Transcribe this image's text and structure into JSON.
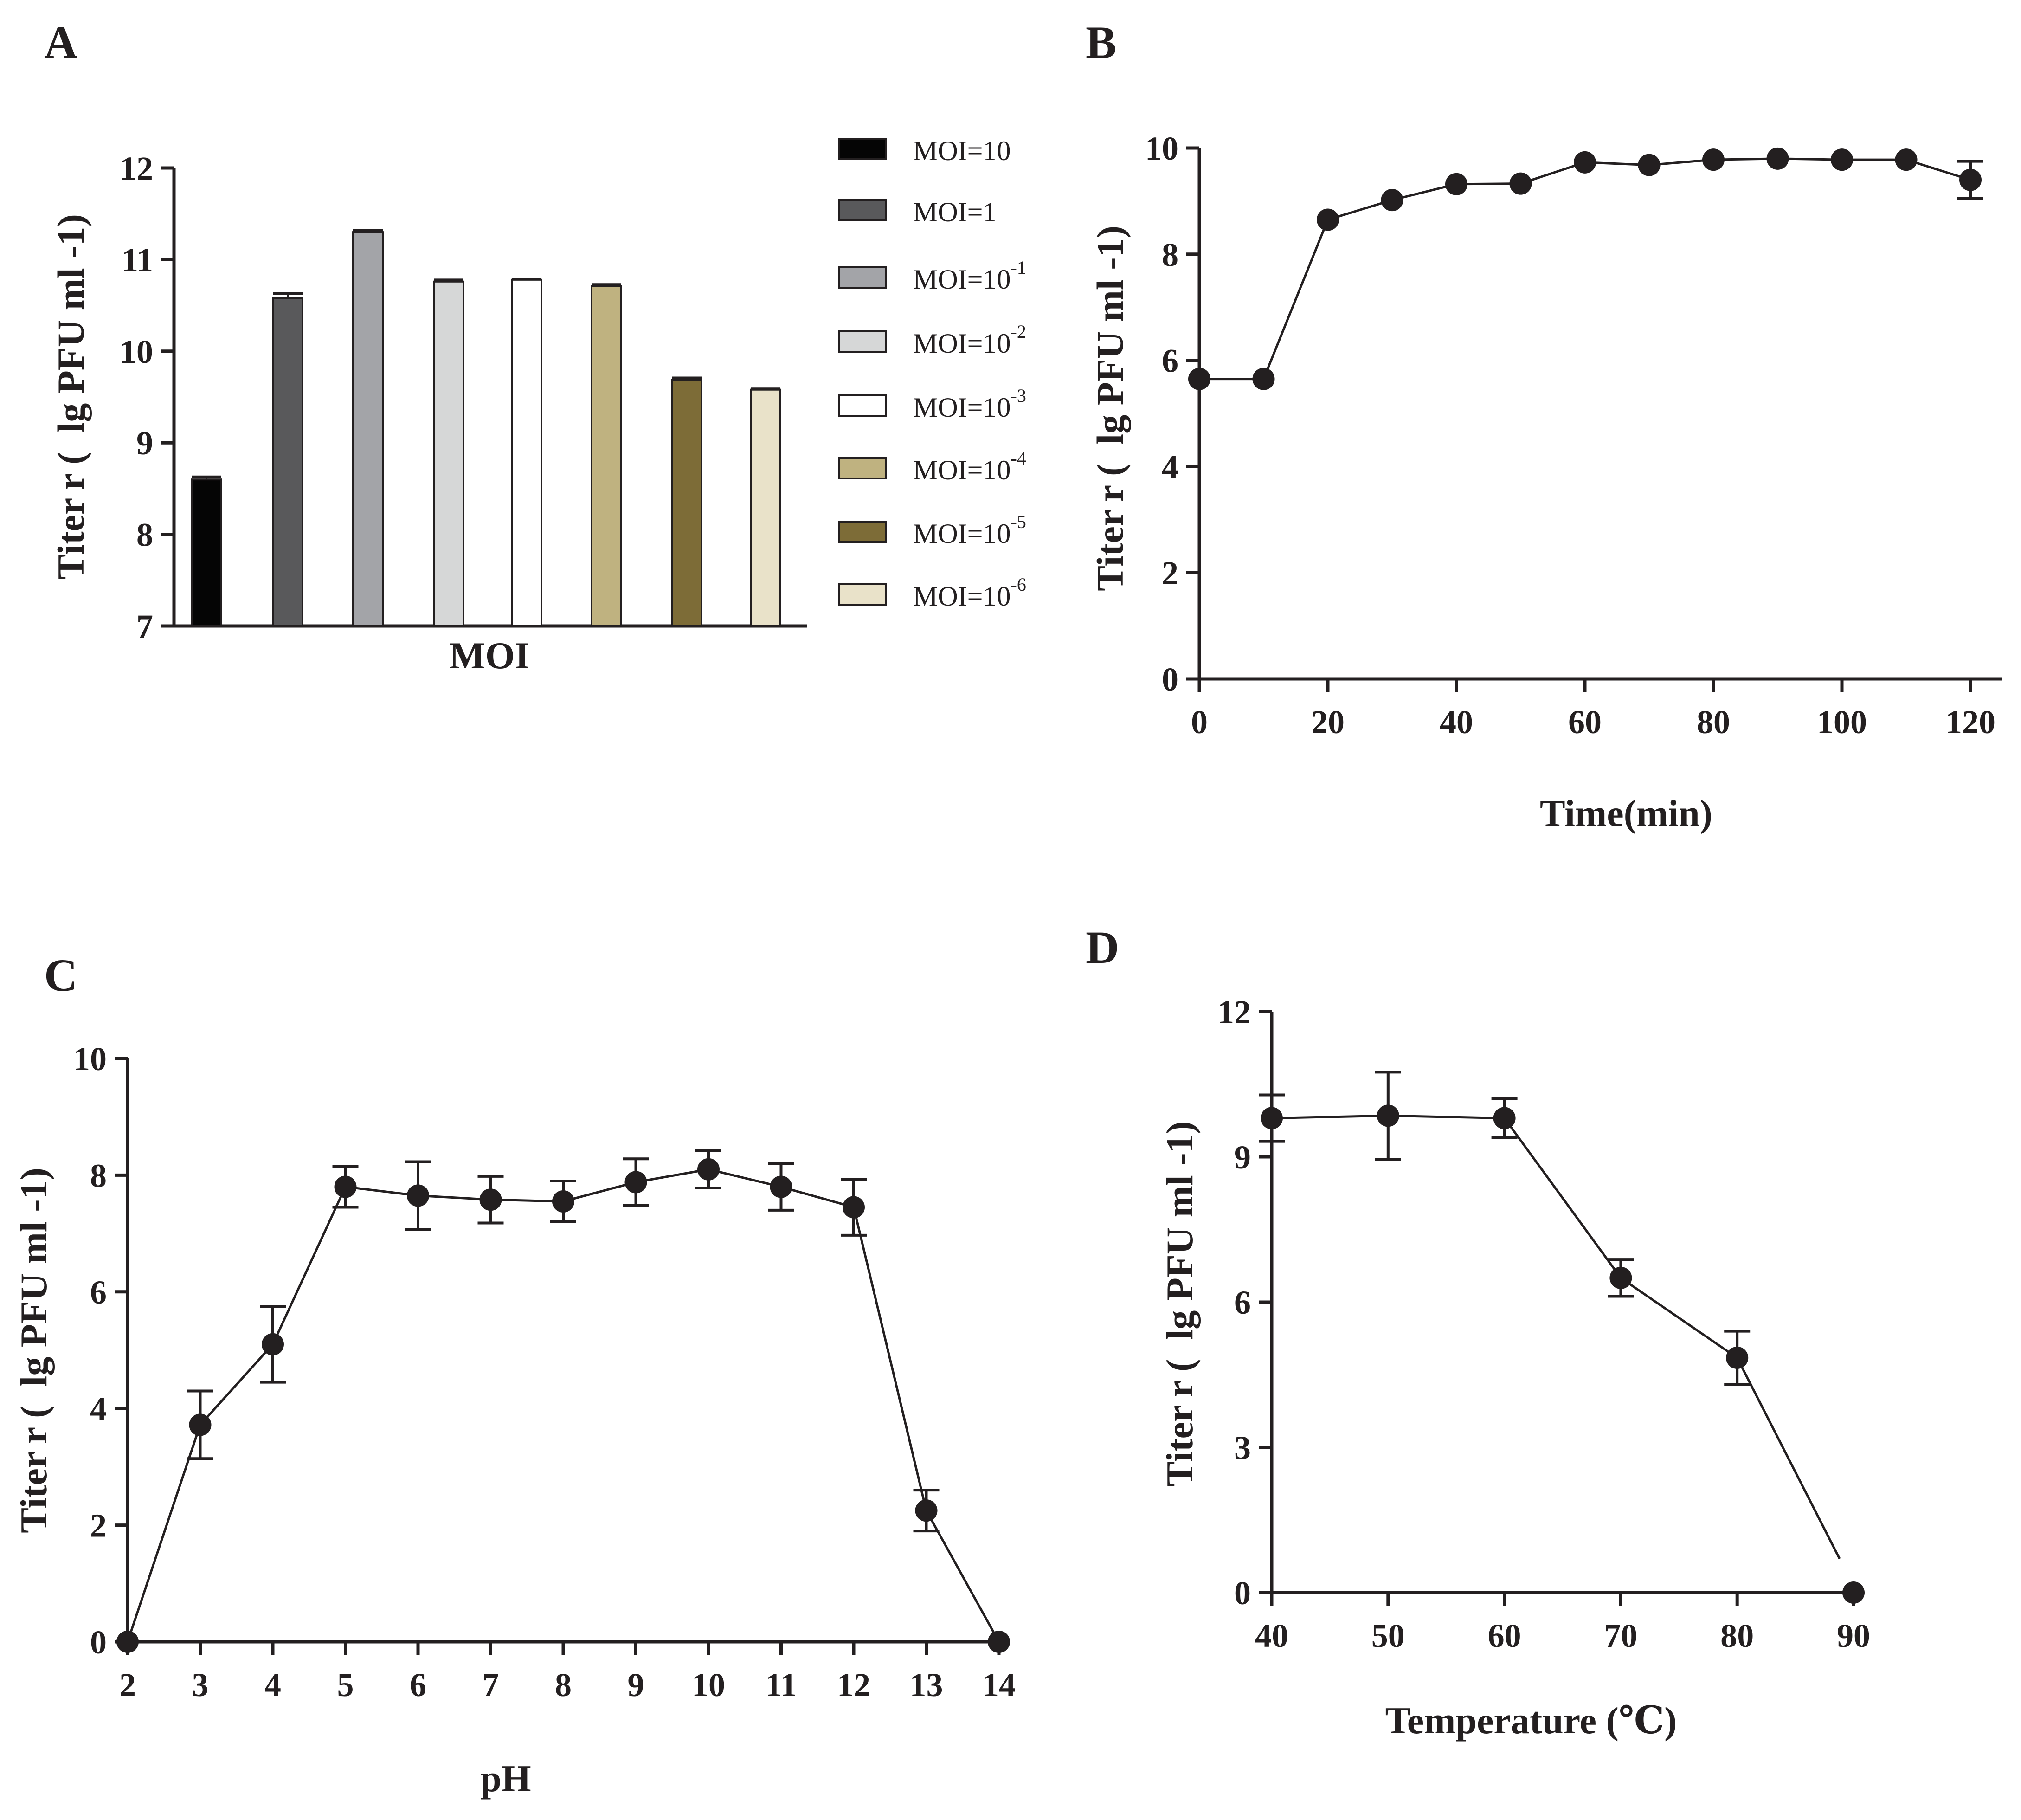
{
  "figure_labels": {
    "a": "A",
    "b": "B",
    "c": "C",
    "d": "D"
  },
  "colors": {
    "ink": "#231f20",
    "bar_outline": "#231f20"
  },
  "chart_data": [
    {
      "id": "A",
      "type": "bar",
      "title": "A",
      "xlabel": "MOI",
      "ylabel": "Titer r ( lg PFU ml -1)",
      "ylim": [
        7,
        12
      ],
      "yticks": [
        7,
        8,
        9,
        10,
        11,
        12
      ],
      "ytick_labels": [
        "7",
        "8",
        "9",
        "10",
        "11",
        "12"
      ],
      "legend_position": "right",
      "series": [
        {
          "name": "MOI=10",
          "base": "MOI=10",
          "exp": "",
          "value": 8.6,
          "error": 0.03,
          "color": "#050505"
        },
        {
          "name": "MOI=1",
          "base": "MOI=1",
          "exp": "",
          "value": 10.58,
          "error": 0.05,
          "color": "#59595b"
        },
        {
          "name": "MOI=10^-1",
          "base": "MOI=10",
          "exp": "-1",
          "value": 11.3,
          "error": 0.02,
          "color": "#a3a4a8"
        },
        {
          "name": "MOI=10^-2",
          "base": "MOI=10",
          "exp": "-2",
          "value": 10.76,
          "error": 0.02,
          "color": "#d6d7d7"
        },
        {
          "name": "MOI=10^-3",
          "base": "MOI=10",
          "exp": "-3",
          "value": 10.78,
          "error": 0.01,
          "color": "#ffffff"
        },
        {
          "name": "MOI=10^-4",
          "base": "MOI=10",
          "exp": "-4",
          "value": 10.71,
          "error": 0.02,
          "color": "#bfb280"
        },
        {
          "name": "MOI=10^-5",
          "base": "MOI=10",
          "exp": "-5",
          "value": 9.69,
          "error": 0.02,
          "color": "#7d6c37"
        },
        {
          "name": "MOI=10^-6",
          "base": "MOI=10",
          "exp": "-6",
          "value": 9.58,
          "error": 0.01,
          "color": "#e9e2c9"
        }
      ]
    },
    {
      "id": "B",
      "type": "line",
      "title": "B",
      "xlabel": "Time(min)",
      "ylabel": "Titer r ( lg PFU ml -1)",
      "xlim": [
        0,
        120
      ],
      "ylim": [
        0,
        10
      ],
      "xticks": [
        0,
        20,
        40,
        60,
        80,
        100,
        120
      ],
      "xtick_labels": [
        "0",
        "20",
        "40",
        "60",
        "80",
        "100",
        "120"
      ],
      "yticks": [
        0,
        2,
        4,
        6,
        8,
        10
      ],
      "ytick_labels": [
        "0",
        "2",
        "4",
        "6",
        "8",
        "10"
      ],
      "x": [
        0,
        10,
        20,
        30,
        40,
        50,
        60,
        70,
        80,
        90,
        100,
        110,
        120
      ],
      "y": [
        5.65,
        5.65,
        8.65,
        9.02,
        9.32,
        9.33,
        9.73,
        9.68,
        9.78,
        9.8,
        9.78,
        9.78,
        9.4
      ],
      "error": [
        0,
        0,
        0,
        0,
        0,
        0,
        0,
        0,
        0,
        0,
        0,
        0,
        0.35
      ]
    },
    {
      "id": "C",
      "type": "line",
      "title": "C",
      "xlabel": "pH",
      "ylabel": "Titer r ( lg PFU ml -1)",
      "xlim": [
        2,
        14
      ],
      "ylim": [
        0,
        10
      ],
      "xticks": [
        2,
        3,
        4,
        5,
        6,
        7,
        8,
        9,
        10,
        11,
        12,
        13,
        14
      ],
      "xtick_labels": [
        "2",
        "3",
        "4",
        "5",
        "6",
        "7",
        "8",
        "9",
        "10",
        "11",
        "12",
        "13",
        "14"
      ],
      "yticks": [
        0,
        2,
        4,
        6,
        8,
        10
      ],
      "ytick_labels": [
        "0",
        "2",
        "4",
        "6",
        "8",
        "10"
      ],
      "x": [
        2,
        3,
        4,
        5,
        6,
        7,
        8,
        9,
        10,
        11,
        12,
        13,
        14
      ],
      "y": [
        0,
        3.72,
        5.1,
        7.8,
        7.65,
        7.58,
        7.55,
        7.88,
        8.1,
        7.8,
        7.45,
        2.25,
        0
      ],
      "error": [
        0,
        0.58,
        0.65,
        0.35,
        0.58,
        0.4,
        0.35,
        0.4,
        0.32,
        0.4,
        0.48,
        0.35,
        0
      ]
    },
    {
      "id": "D",
      "type": "line",
      "title": "D",
      "xlabel": "Temperature (℃)",
      "ylabel": "Titer r ( lg PFU ml -1)",
      "xlim": [
        40,
        90
      ],
      "ylim": [
        0,
        12
      ],
      "xticks": [
        40,
        50,
        60,
        70,
        80,
        90
      ],
      "xtick_labels": [
        "40",
        "50",
        "60",
        "70",
        "80",
        "90"
      ],
      "yticks": [
        0,
        3,
        6,
        9,
        12
      ],
      "ytick_labels": [
        "0",
        "3",
        "6",
        "9",
        "12"
      ],
      "x": [
        40,
        50,
        60,
        70,
        80,
        90
      ],
      "y": [
        9.8,
        9.85,
        9.8,
        6.5,
        4.85,
        0
      ],
      "error": [
        0.48,
        0.9,
        0.4,
        0.38,
        0.55,
        0
      ],
      "line_end_y": 0.7
    }
  ]
}
